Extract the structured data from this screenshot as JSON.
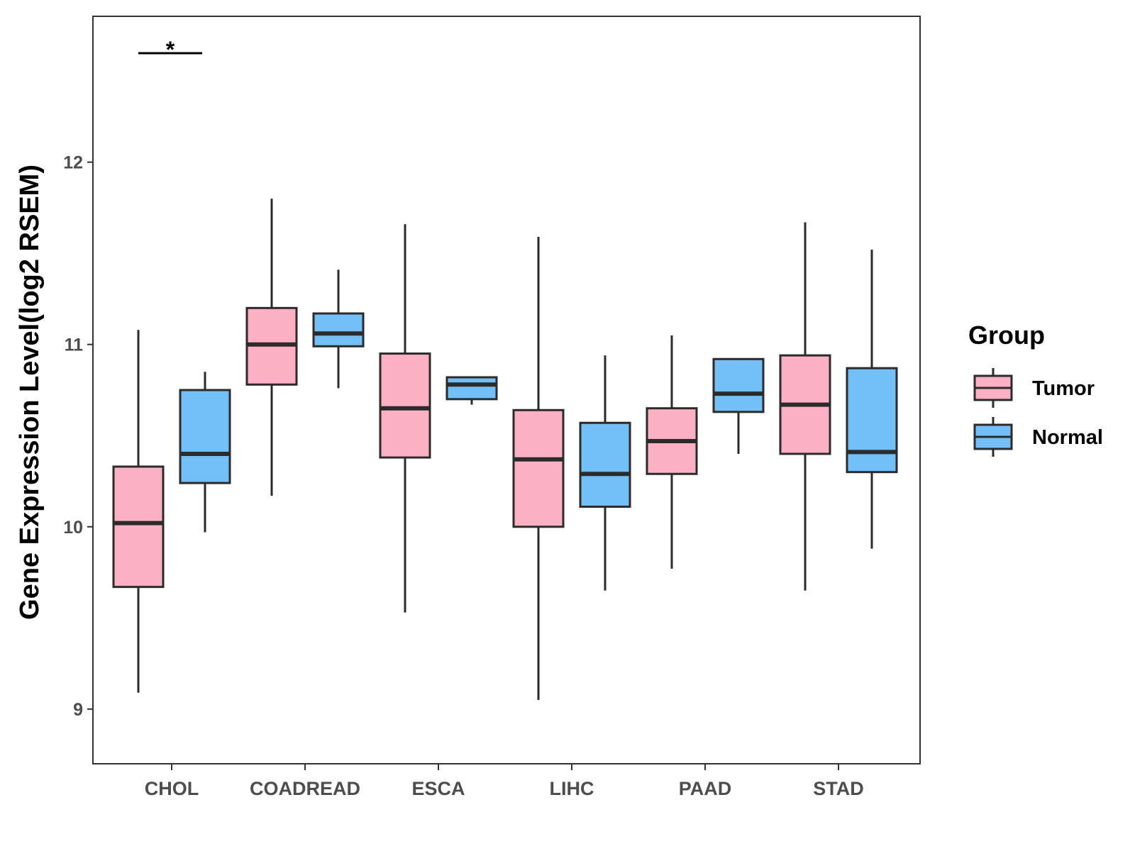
{
  "chart_data": {
    "type": "boxplot",
    "title": "",
    "xlabel": "",
    "ylabel": "Gene Expression Level(log2 RSEM)",
    "ylim": [
      8.7,
      12.8
    ],
    "yticks": [
      9,
      10,
      11,
      12
    ],
    "categories": [
      "CHOL",
      "COADREAD",
      "ESCA",
      "LIHC",
      "PAAD",
      "STAD"
    ],
    "legend": {
      "title": "Group",
      "position": "right",
      "items": [
        {
          "name": "Tumor",
          "color": "#FBB1C3"
        },
        {
          "name": "Normal",
          "color": "#73BFF7"
        }
      ]
    },
    "series": [
      {
        "name": "Tumor",
        "color": "#FBB1C3",
        "boxes": [
          {
            "category": "CHOL",
            "min": 9.09,
            "q1": 9.67,
            "median": 10.02,
            "q3": 10.33,
            "max": 11.08
          },
          {
            "category": "COADREAD",
            "min": 10.17,
            "q1": 10.78,
            "median": 11.0,
            "q3": 11.2,
            "max": 11.8
          },
          {
            "category": "ESCA",
            "min": 9.53,
            "q1": 10.38,
            "median": 10.65,
            "q3": 10.95,
            "max": 11.66
          },
          {
            "category": "LIHC",
            "min": 9.05,
            "q1": 10.0,
            "median": 10.37,
            "q3": 10.64,
            "max": 11.59
          },
          {
            "category": "PAAD",
            "min": 9.77,
            "q1": 10.29,
            "median": 10.47,
            "q3": 10.65,
            "max": 11.05
          },
          {
            "category": "STAD",
            "min": 9.65,
            "q1": 10.4,
            "median": 10.67,
            "q3": 10.94,
            "max": 11.67
          }
        ]
      },
      {
        "name": "Normal",
        "color": "#73BFF7",
        "boxes": [
          {
            "category": "CHOL",
            "min": 9.97,
            "q1": 10.24,
            "median": 10.4,
            "q3": 10.75,
            "max": 10.85
          },
          {
            "category": "COADREAD",
            "min": 10.76,
            "q1": 10.99,
            "median": 11.06,
            "q3": 11.17,
            "max": 11.41
          },
          {
            "category": "ESCA",
            "min": 10.67,
            "q1": 10.7,
            "median": 10.78,
            "q3": 10.82,
            "max": 10.82
          },
          {
            "category": "LIHC",
            "min": 9.65,
            "q1": 10.11,
            "median": 10.29,
            "q3": 10.57,
            "max": 10.94
          },
          {
            "category": "PAAD",
            "min": 10.4,
            "q1": 10.63,
            "median": 10.73,
            "q3": 10.92,
            "max": 10.92
          },
          {
            "category": "STAD",
            "min": 9.88,
            "q1": 10.3,
            "median": 10.41,
            "q3": 10.87,
            "max": 11.52
          }
        ]
      }
    ],
    "annotations": [
      {
        "category": "CHOL",
        "label": "*",
        "note": "significance bracket between Tumor and Normal"
      }
    ]
  }
}
